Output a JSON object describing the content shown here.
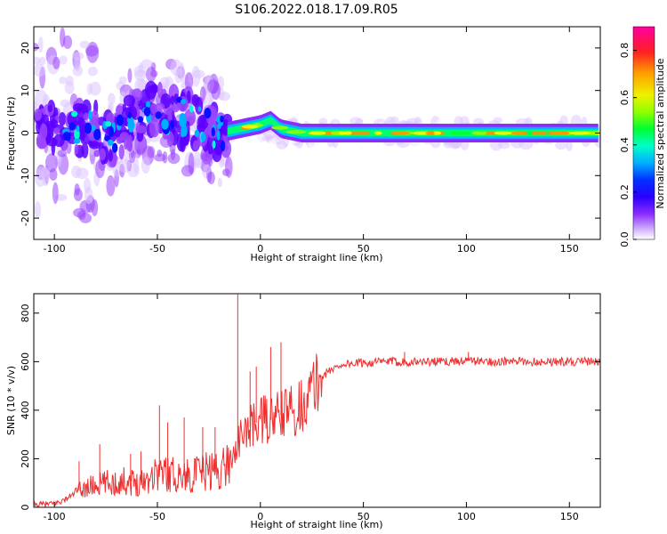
{
  "title": "S106.2022.018.17.09.R05",
  "colors": {
    "snr_line": "#ee3030",
    "colormap": [
      "#ffffff",
      "#e8d6ff",
      "#b98cff",
      "#7a22ff",
      "#3a00ff",
      "#0000ff",
      "#00a0ff",
      "#00ffff",
      "#00ff80",
      "#00ff00",
      "#a0ff00",
      "#ffff00",
      "#ffa000",
      "#ff3000",
      "#ff0050",
      "#ff00a0"
    ]
  },
  "chart_data": [
    {
      "type": "heatmap",
      "xlabel": "Height of straight line (km)",
      "ylabel": "Frequency (Hz)",
      "xlim": [
        -110,
        165
      ],
      "ylim": [
        -25,
        25
      ],
      "xticks": [
        -100,
        -50,
        0,
        50,
        100,
        150
      ],
      "yticks": [
        -20,
        -10,
        0,
        10,
        20
      ],
      "xtick_labels": [
        "-100",
        "-50",
        "0",
        "50",
        "100",
        "150"
      ],
      "ytick_labels": [
        "-20",
        "-10",
        "0",
        "10",
        "20"
      ],
      "colorbar": {
        "label": "Normalized spectral amplitude",
        "range": [
          0.0,
          0.9
        ],
        "ticks": [
          0.0,
          0.2,
          0.4,
          0.6,
          0.8
        ],
        "tick_labels": [
          "0.0",
          "0.2",
          "0.4",
          "0.6",
          "0.8"
        ]
      },
      "band_center_hz": [
        [
          -100,
          3
        ],
        [
          -90,
          1
        ],
        [
          -80,
          0
        ],
        [
          -70,
          -1
        ],
        [
          -60,
          4
        ],
        [
          -50,
          5
        ],
        [
          -40,
          4
        ],
        [
          -30,
          2
        ],
        [
          -20,
          0
        ],
        [
          -10,
          1
        ],
        [
          0,
          2
        ],
        [
          5,
          3
        ],
        [
          10,
          1
        ],
        [
          20,
          0
        ],
        [
          40,
          0
        ],
        [
          60,
          0
        ],
        [
          80,
          0
        ],
        [
          100,
          0
        ],
        [
          120,
          0
        ],
        [
          140,
          0
        ],
        [
          165,
          0
        ]
      ]
    },
    {
      "type": "line",
      "xlabel": "Height of straight line (km)",
      "ylabel": "SNR (10 * v/v)",
      "xlim": [
        -110,
        165
      ],
      "ylim": [
        0,
        880
      ],
      "xticks": [
        -100,
        -50,
        0,
        50,
        100,
        150
      ],
      "yticks": [
        0,
        200,
        400,
        600,
        800
      ],
      "xtick_labels": [
        "-100",
        "-50",
        "0",
        "50",
        "100",
        "150"
      ],
      "ytick_labels": [
        "0",
        "200",
        "400",
        "600",
        "800"
      ],
      "series": [
        {
          "values": [
            [
              -110,
              10
            ],
            [
              -100,
              15
            ],
            [
              -95,
              30
            ],
            [
              -90,
              60
            ],
            [
              -85,
              80
            ],
            [
              -80,
              90
            ],
            [
              -75,
              100
            ],
            [
              -70,
              100
            ],
            [
              -65,
              110
            ],
            [
              -60,
              100
            ],
            [
              -55,
              120
            ],
            [
              -50,
              150
            ],
            [
              -45,
              140
            ],
            [
              -40,
              130
            ],
            [
              -35,
              130
            ],
            [
              -30,
              140
            ],
            [
              -25,
              150
            ],
            [
              -20,
              150
            ],
            [
              -15,
              190
            ],
            [
              -10,
              280
            ],
            [
              -5,
              330
            ],
            [
              0,
              360
            ],
            [
              5,
              360
            ],
            [
              10,
              380
            ],
            [
              15,
              400
            ],
            [
              20,
              420
            ],
            [
              25,
              480
            ],
            [
              30,
              540
            ],
            [
              35,
              570
            ],
            [
              40,
              590
            ],
            [
              50,
              595
            ],
            [
              60,
              600
            ],
            [
              70,
              600
            ],
            [
              80,
              600
            ],
            [
              90,
              600
            ],
            [
              100,
              605
            ],
            [
              110,
              600
            ],
            [
              120,
              600
            ],
            [
              130,
              600
            ],
            [
              140,
              600
            ],
            [
              150,
              600
            ],
            [
              165,
              600
            ]
          ],
          "spikes": [
            [
              -88,
              190
            ],
            [
              -78,
              260
            ],
            [
              -63,
              220
            ],
            [
              -58,
              230
            ],
            [
              -49,
              420
            ],
            [
              -45,
              350
            ],
            [
              -37,
              370
            ],
            [
              -28,
              330
            ],
            [
              -22,
              330
            ],
            [
              -11,
              880
            ],
            [
              -5,
              560
            ],
            [
              -2,
              580
            ],
            [
              5,
              660
            ],
            [
              10,
              680
            ],
            [
              70,
              640
            ],
            [
              101,
              640
            ]
          ]
        }
      ]
    }
  ]
}
